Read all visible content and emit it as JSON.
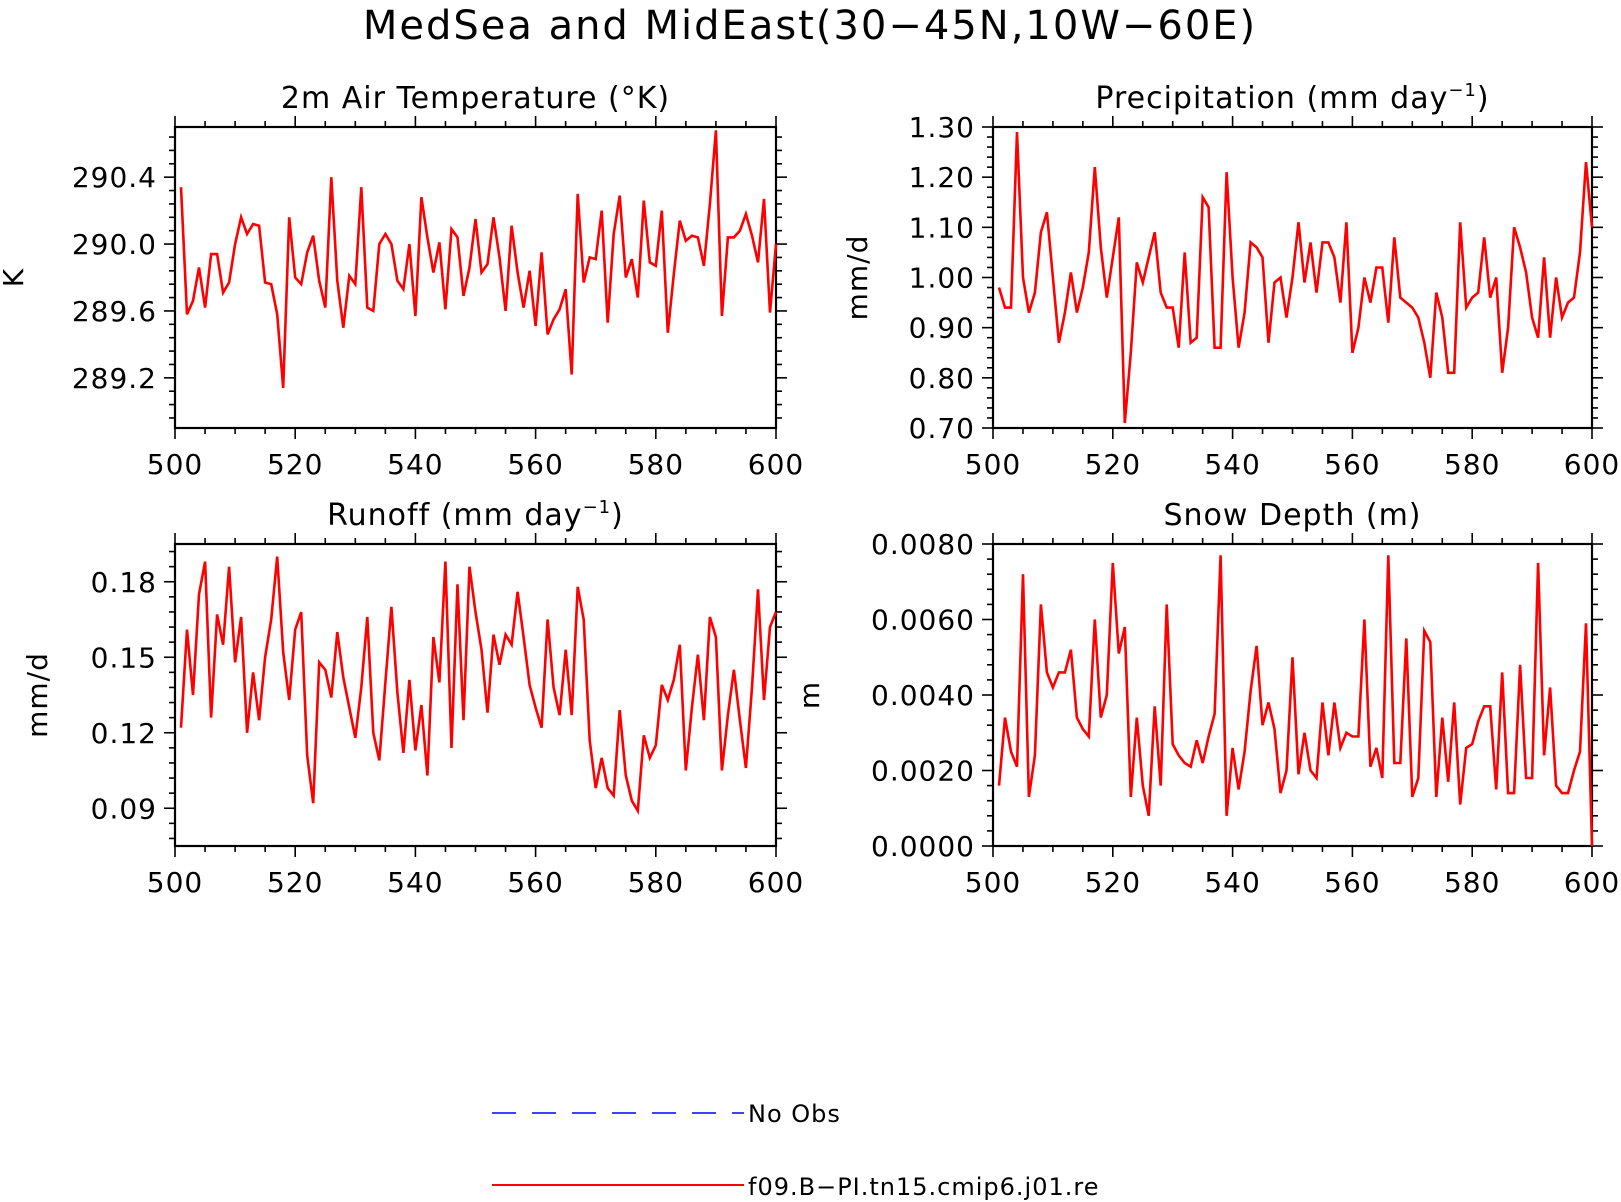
{
  "title": "MedSea and MidEast(30−45N,10W−60E)",
  "colors": {
    "model": "#ff0000",
    "obs": "#0000ff",
    "axis": "#000000"
  },
  "legend": [
    {
      "label": "No Obs",
      "color": "#0000ff",
      "style": "dashed"
    },
    {
      "label": "f09.B−PI.tn15.cmip6.j01.re",
      "color": "#ff0000",
      "style": "solid"
    }
  ],
  "panels": [
    {
      "title": "2m Air Temperature (°K)",
      "ylabel": "K",
      "xticks": [
        "500",
        "520",
        "540",
        "560",
        "580",
        "600"
      ],
      "yticks": [
        "289.2",
        "289.6",
        "290.0",
        "290.4"
      ]
    },
    {
      "title": "Precipitation (mm day",
      "title_sup": "−1",
      "title_end": ")",
      "ylabel": "mm/d",
      "xticks": [
        "500",
        "520",
        "540",
        "560",
        "580",
        "600"
      ],
      "yticks": [
        "0.70",
        "0.80",
        "0.90",
        "1.00",
        "1.10",
        "1.20",
        "1.30"
      ]
    },
    {
      "title": "Runoff (mm day",
      "title_sup": "−1",
      "title_end": ")",
      "ylabel": "mm/d",
      "xticks": [
        "500",
        "520",
        "540",
        "560",
        "580",
        "600"
      ],
      "yticks": [
        "0.09",
        "0.12",
        "0.15",
        "0.18"
      ]
    },
    {
      "title": "Snow Depth (m)",
      "ylabel": "m",
      "xticks": [
        "500",
        "520",
        "540",
        "560",
        "580",
        "600"
      ],
      "yticks": [
        "0.0000",
        "0.0020",
        "0.0040",
        "0.0060",
        "0.0080"
      ]
    }
  ],
  "chart_data": [
    {
      "type": "line",
      "title": "2m Air Temperature (°K)",
      "ylabel": "K",
      "xlim": [
        500,
        600
      ],
      "ylim": [
        288.9,
        290.7
      ],
      "yticks": [
        289.2,
        289.6,
        290.0,
        290.4
      ],
      "x_start": 501,
      "series": [
        {
          "name": "f09.B−PI.tn15.cmip6.j01.re",
          "values": [
            290.34,
            289.58,
            289.66,
            289.86,
            289.62,
            289.94,
            289.94,
            289.71,
            289.77,
            290.0,
            290.16,
            290.06,
            290.12,
            290.11,
            289.77,
            289.76,
            289.58,
            289.14,
            290.16,
            289.8,
            289.76,
            289.95,
            290.05,
            289.78,
            289.62,
            290.4,
            289.78,
            289.5,
            289.81,
            289.76,
            290.34,
            289.62,
            289.6,
            290.0,
            290.06,
            290.0,
            289.78,
            289.73,
            290.0,
            289.57,
            290.28,
            290.04,
            289.83,
            290.01,
            289.61,
            290.09,
            290.04,
            289.69,
            289.86,
            290.15,
            289.83,
            289.88,
            290.16,
            289.92,
            289.6,
            290.11,
            289.83,
            289.62,
            289.84,
            289.51,
            289.95,
            289.46,
            289.55,
            289.61,
            289.73,
            289.22,
            290.3,
            289.77,
            289.92,
            289.91,
            290.2,
            289.53,
            290.06,
            290.29,
            289.8,
            289.91,
            289.68,
            290.26,
            289.89,
            289.87,
            290.2,
            289.47,
            289.82,
            290.14,
            290.02,
            290.05,
            290.04,
            289.87,
            290.24,
            290.68,
            289.57,
            290.04,
            290.04,
            290.08,
            290.18,
            290.05,
            289.89,
            290.27,
            289.59,
            290.0
          ]
        }
      ]
    },
    {
      "type": "line",
      "title": "Precipitation (mm day−1)",
      "ylabel": "mm/d",
      "xlim": [
        500,
        600
      ],
      "ylim": [
        0.7,
        1.3
      ],
      "yticks": [
        0.7,
        0.8,
        0.9,
        1.0,
        1.1,
        1.2,
        1.3
      ],
      "x_start": 501,
      "series": [
        {
          "name": "f09.B−PI.tn15.cmip6.j01.re",
          "values": [
            0.98,
            0.94,
            0.94,
            1.29,
            1.0,
            0.93,
            0.97,
            1.09,
            1.13,
            1.0,
            0.87,
            0.93,
            1.01,
            0.93,
            0.98,
            1.05,
            1.22,
            1.06,
            0.96,
            1.04,
            1.12,
            0.71,
            0.85,
            1.03,
            0.99,
            1.04,
            1.09,
            0.97,
            0.94,
            0.94,
            0.86,
            1.05,
            0.87,
            0.88,
            1.16,
            1.14,
            0.86,
            0.86,
            1.21,
            1.0,
            0.86,
            0.93,
            1.07,
            1.06,
            1.04,
            0.87,
            0.99,
            1.0,
            0.92,
            1.0,
            1.11,
            0.99,
            1.07,
            0.97,
            1.07,
            1.07,
            1.04,
            0.95,
            1.11,
            0.85,
            0.9,
            1.0,
            0.95,
            1.02,
            1.02,
            0.91,
            1.08,
            0.96,
            0.95,
            0.94,
            0.92,
            0.87,
            0.8,
            0.97,
            0.92,
            0.81,
            0.81,
            1.11,
            0.94,
            0.96,
            0.97,
            1.08,
            0.96,
            1.0,
            0.81,
            0.9,
            1.1,
            1.06,
            1.01,
            0.92,
            0.88,
            1.04,
            0.88,
            1.0,
            0.92,
            0.95,
            0.96,
            1.05,
            1.23,
            1.1
          ]
        }
      ]
    },
    {
      "type": "line",
      "title": "Runoff (mm day−1)",
      "ylabel": "mm/d",
      "xlim": [
        500,
        600
      ],
      "ylim": [
        0.075,
        0.195
      ],
      "yticks": [
        0.09,
        0.12,
        0.15,
        0.18
      ],
      "x_start": 501,
      "series": [
        {
          "name": "f09.B−PI.tn15.cmip6.j01.re",
          "values": [
            0.122,
            0.161,
            0.135,
            0.175,
            0.188,
            0.126,
            0.167,
            0.155,
            0.186,
            0.148,
            0.166,
            0.12,
            0.144,
            0.125,
            0.15,
            0.165,
            0.19,
            0.152,
            0.133,
            0.161,
            0.168,
            0.111,
            0.092,
            0.148,
            0.145,
            0.134,
            0.16,
            0.142,
            0.13,
            0.118,
            0.138,
            0.166,
            0.12,
            0.109,
            0.14,
            0.17,
            0.136,
            0.112,
            0.141,
            0.113,
            0.131,
            0.103,
            0.158,
            0.14,
            0.188,
            0.114,
            0.179,
            0.125,
            0.186,
            0.168,
            0.153,
            0.128,
            0.159,
            0.147,
            0.159,
            0.155,
            0.176,
            0.158,
            0.139,
            0.13,
            0.122,
            0.165,
            0.138,
            0.127,
            0.153,
            0.127,
            0.178,
            0.165,
            0.117,
            0.098,
            0.11,
            0.098,
            0.095,
            0.129,
            0.103,
            0.093,
            0.089,
            0.119,
            0.11,
            0.115,
            0.139,
            0.133,
            0.141,
            0.155,
            0.105,
            0.13,
            0.151,
            0.125,
            0.166,
            0.158,
            0.105,
            0.127,
            0.145,
            0.125,
            0.106,
            0.138,
            0.177,
            0.133,
            0.162,
            0.168
          ]
        }
      ]
    },
    {
      "type": "line",
      "title": "Snow Depth (m)",
      "ylabel": "m",
      "xlim": [
        500,
        600
      ],
      "ylim": [
        0.0,
        0.008
      ],
      "yticks": [
        0.0,
        0.002,
        0.004,
        0.006,
        0.008
      ],
      "x_start": 501,
      "series": [
        {
          "name": "f09.B−PI.tn15.cmip6.j01.re",
          "values": [
            0.0016,
            0.0034,
            0.0025,
            0.0021,
            0.0072,
            0.0013,
            0.0024,
            0.0064,
            0.0046,
            0.0042,
            0.0046,
            0.0046,
            0.0052,
            0.0034,
            0.0031,
            0.0029,
            0.006,
            0.0034,
            0.004,
            0.0075,
            0.0051,
            0.0058,
            0.0013,
            0.0034,
            0.0016,
            0.0008,
            0.0037,
            0.0016,
            0.0064,
            0.0027,
            0.0024,
            0.0022,
            0.0021,
            0.0028,
            0.0022,
            0.0029,
            0.0035,
            0.0077,
            0.0008,
            0.0026,
            0.0015,
            0.0025,
            0.0041,
            0.0053,
            0.0032,
            0.0038,
            0.0031,
            0.0014,
            0.002,
            0.005,
            0.0019,
            0.003,
            0.002,
            0.0018,
            0.0038,
            0.0024,
            0.0038,
            0.0026,
            0.003,
            0.0029,
            0.0029,
            0.006,
            0.0021,
            0.0026,
            0.0018,
            0.0077,
            0.0022,
            0.0022,
            0.0055,
            0.0013,
            0.0018,
            0.0057,
            0.0054,
            0.0013,
            0.0034,
            0.0017,
            0.0038,
            0.0011,
            0.0026,
            0.0027,
            0.0033,
            0.0037,
            0.0037,
            0.0015,
            0.0046,
            0.0014,
            0.0014,
            0.0048,
            0.0018,
            0.0018,
            0.0075,
            0.0024,
            0.0042,
            0.0016,
            0.0014,
            0.0014,
            0.002,
            0.0025,
            0.0059,
            0.0
          ]
        }
      ]
    }
  ]
}
